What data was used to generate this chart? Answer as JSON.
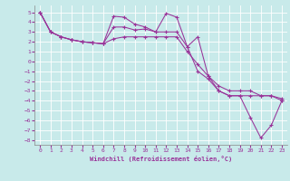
{
  "title": "",
  "xlabel": "Windchill (Refroidissement éolien,°C)",
  "ylabel": "",
  "background_color": "#c8eaea",
  "grid_color": "#ffffff",
  "line_color": "#993399",
  "xlim": [
    -0.5,
    23.5
  ],
  "ylim": [
    -8.5,
    5.7
  ],
  "xticks": [
    0,
    1,
    2,
    3,
    4,
    5,
    6,
    7,
    8,
    9,
    10,
    11,
    12,
    13,
    14,
    15,
    16,
    17,
    18,
    19,
    20,
    21,
    22,
    23
  ],
  "yticks": [
    5,
    4,
    3,
    2,
    1,
    0,
    -1,
    -2,
    -3,
    -4,
    -5,
    -6,
    -7,
    -8
  ],
  "series1_x": [
    0,
    1,
    2,
    3,
    4,
    5,
    6,
    7,
    8,
    9,
    10,
    11,
    12,
    13,
    14,
    15,
    16,
    17,
    18,
    19,
    20,
    21,
    22,
    23
  ],
  "series1_y": [
    5.0,
    3.0,
    2.5,
    2.2,
    2.0,
    1.9,
    1.8,
    4.6,
    4.5,
    3.8,
    3.5,
    3.0,
    4.9,
    4.5,
    1.5,
    2.5,
    -1.5,
    -3.0,
    -3.5,
    -3.5,
    -5.7,
    -7.8,
    -6.5,
    -4.0
  ],
  "series2_x": [
    0,
    1,
    2,
    3,
    4,
    5,
    6,
    7,
    8,
    9,
    10,
    11,
    12,
    13,
    14,
    15,
    16,
    17,
    18,
    19,
    20,
    21,
    22,
    23
  ],
  "series2_y": [
    5.0,
    3.0,
    2.5,
    2.2,
    2.0,
    1.9,
    1.8,
    3.5,
    3.5,
    3.2,
    3.3,
    3.0,
    3.0,
    3.0,
    1.5,
    -1.0,
    -1.8,
    -3.0,
    -3.5,
    -3.5,
    -3.5,
    -3.5,
    -3.5,
    -3.8
  ],
  "series3_x": [
    0,
    1,
    2,
    3,
    4,
    5,
    6,
    7,
    8,
    9,
    10,
    11,
    12,
    13,
    14,
    15,
    16,
    17,
    18,
    19,
    20,
    21,
    22,
    23
  ],
  "series3_y": [
    5.0,
    3.0,
    2.5,
    2.2,
    2.0,
    1.9,
    1.8,
    2.3,
    2.5,
    2.5,
    2.5,
    2.5,
    2.5,
    2.5,
    1.0,
    -0.3,
    -1.5,
    -2.5,
    -3.0,
    -3.0,
    -3.0,
    -3.5,
    -3.5,
    -4.0
  ]
}
